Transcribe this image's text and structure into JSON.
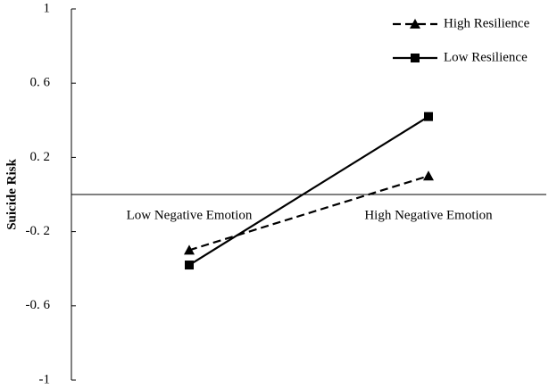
{
  "chart_data": {
    "type": "line",
    "y_label": "Suicide Risk",
    "categories": [
      "Low Negative Emotion",
      "High Negative Emotion"
    ],
    "series": [
      {
        "name": "High Resilience",
        "color": "#000000",
        "linestyle": "dashed",
        "marker": "triangle",
        "values": [
          -0.3,
          0.1
        ]
      },
      {
        "name": "Low Resilience",
        "color": "#000000",
        "linestyle": "solid",
        "marker": "square",
        "values": [
          -0.38,
          0.42
        ]
      }
    ],
    "ylim": [
      -1,
      1
    ],
    "yticks": [
      -1,
      {
        "value": -0.6,
        "label": "-0. 6"
      },
      {
        "value": -0.2,
        "label": "-0. 2"
      },
      {
        "value": 0.2,
        "label": "0. 2"
      },
      {
        "value": 0.6,
        "label": "0. 6"
      },
      1
    ],
    "legend": "upper right"
  }
}
